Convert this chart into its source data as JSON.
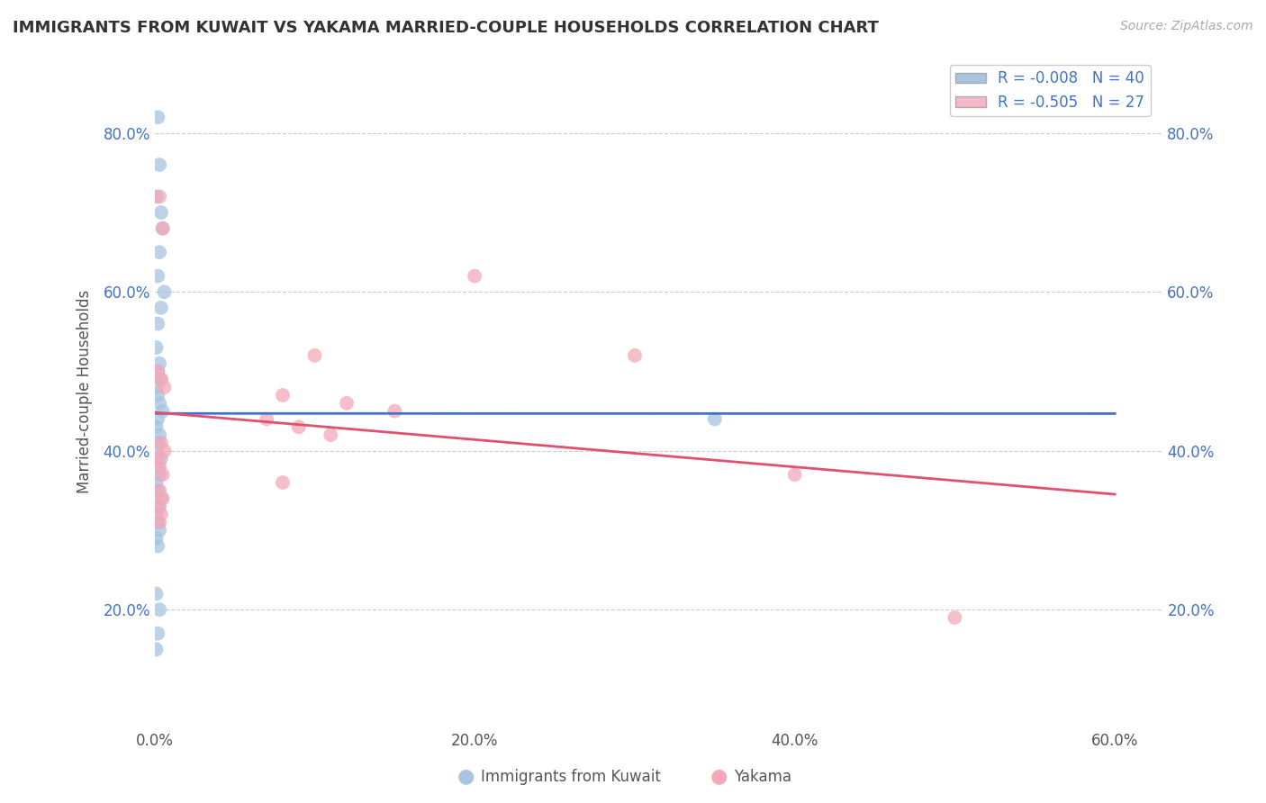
{
  "title": "IMMIGRANTS FROM KUWAIT VS YAKAMA MARRIED-COUPLE HOUSEHOLDS CORRELATION CHART",
  "source_text": "Source: ZipAtlas.com",
  "ylabel": "Married-couple Households",
  "legend_label1": "Immigrants from Kuwait",
  "legend_label2": "Yakama",
  "r1": -0.008,
  "n1": 40,
  "r2": -0.505,
  "n2": 27,
  "xlim": [
    0.0,
    0.63
  ],
  "ylim": [
    0.05,
    0.9
  ],
  "xtick_labels": [
    "0.0%",
    "20.0%",
    "40.0%",
    "60.0%"
  ],
  "xtick_vals": [
    0.0,
    0.2,
    0.4,
    0.6
  ],
  "ytick_labels": [
    "20.0%",
    "40.0%",
    "60.0%",
    "80.0%"
  ],
  "ytick_vals": [
    0.2,
    0.4,
    0.6,
    0.8
  ],
  "color_blue": "#a8c4e0",
  "color_pink": "#f4a8b8",
  "line_blue": "#4472c4",
  "line_pink": "#e05070",
  "legend_color1": "#a8c4e0",
  "legend_color2": "#f4b8c8",
  "text_color": "#4472c4",
  "blue_scatter_x": [
    0.002,
    0.003,
    0.001,
    0.004,
    0.005,
    0.003,
    0.002,
    0.006,
    0.004,
    0.002,
    0.001,
    0.003,
    0.002,
    0.004,
    0.001,
    0.002,
    0.003,
    0.005,
    0.002,
    0.001,
    0.003,
    0.002,
    0.001,
    0.004,
    0.002,
    0.003,
    0.001,
    0.002,
    0.004,
    0.003,
    0.001,
    0.002,
    0.003,
    0.001,
    0.35,
    0.002,
    0.001,
    0.003,
    0.002,
    0.001
  ],
  "blue_scatter_y": [
    0.82,
    0.76,
    0.72,
    0.7,
    0.68,
    0.65,
    0.62,
    0.6,
    0.58,
    0.56,
    0.53,
    0.51,
    0.5,
    0.49,
    0.48,
    0.47,
    0.46,
    0.45,
    0.44,
    0.43,
    0.42,
    0.41,
    0.4,
    0.39,
    0.38,
    0.37,
    0.36,
    0.35,
    0.34,
    0.33,
    0.32,
    0.31,
    0.3,
    0.29,
    0.44,
    0.28,
    0.22,
    0.2,
    0.17,
    0.15
  ],
  "pink_scatter_x": [
    0.003,
    0.005,
    0.2,
    0.3,
    0.002,
    0.004,
    0.006,
    0.1,
    0.08,
    0.12,
    0.15,
    0.07,
    0.09,
    0.11,
    0.004,
    0.006,
    0.002,
    0.003,
    0.005,
    0.08,
    0.003,
    0.005,
    0.002,
    0.004,
    0.003,
    0.5,
    0.4
  ],
  "pink_scatter_y": [
    0.72,
    0.68,
    0.62,
    0.52,
    0.5,
    0.49,
    0.48,
    0.52,
    0.47,
    0.46,
    0.45,
    0.44,
    0.43,
    0.42,
    0.41,
    0.4,
    0.39,
    0.38,
    0.37,
    0.36,
    0.35,
    0.34,
    0.33,
    0.32,
    0.31,
    0.19,
    0.37
  ]
}
